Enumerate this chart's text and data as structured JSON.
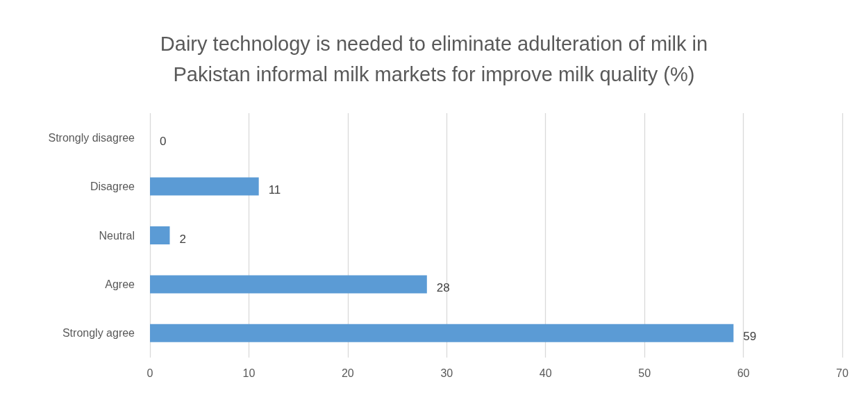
{
  "chart_data": {
    "type": "bar",
    "orientation": "horizontal",
    "title": "Dairy technology is needed to eliminate adulteration of milk in\nPakistan informal milk markets for improve milk quality (%)",
    "categories": [
      "Strongly disagree",
      "Disagree",
      "Neutral",
      "Agree",
      "Strongly agree"
    ],
    "values": [
      0,
      11,
      2,
      28,
      59
    ],
    "color": "#5b9bd5",
    "xlim": [
      0,
      70
    ],
    "xticks": [
      0,
      10,
      20,
      30,
      40,
      50,
      60,
      70
    ],
    "grid": "x",
    "data_labels": true
  }
}
